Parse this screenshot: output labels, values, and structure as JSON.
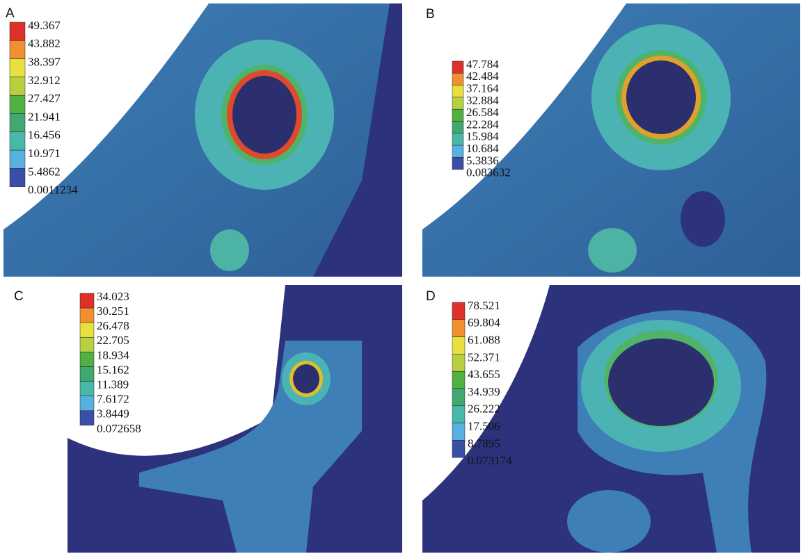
{
  "panels": [
    {
      "label": "A",
      "legend": [
        "49.367",
        "43.882",
        "38.397",
        "32.912",
        "27.427",
        "21.941",
        "16.456",
        "10.971",
        "5.4862",
        "0.0011234"
      ]
    },
    {
      "label": "B",
      "legend": [
        "47.784",
        "42.484",
        "37.164",
        "32.884",
        "26.584",
        "22.284",
        "15.984",
        "10.684",
        "5.3836",
        "0.083632"
      ]
    },
    {
      "label": "C",
      "legend": [
        "34.023",
        "30.251",
        "26.478",
        "22.705",
        "18.934",
        "15.162",
        "11.389",
        "7.6172",
        "3.8449",
        "0.072658"
      ]
    },
    {
      "label": "D",
      "legend": [
        "78.521",
        "69.804",
        "61.088",
        "52.371",
        "43.655",
        "34.939",
        "26.222",
        "17.506",
        "8.7895",
        "0.073174"
      ]
    }
  ]
}
